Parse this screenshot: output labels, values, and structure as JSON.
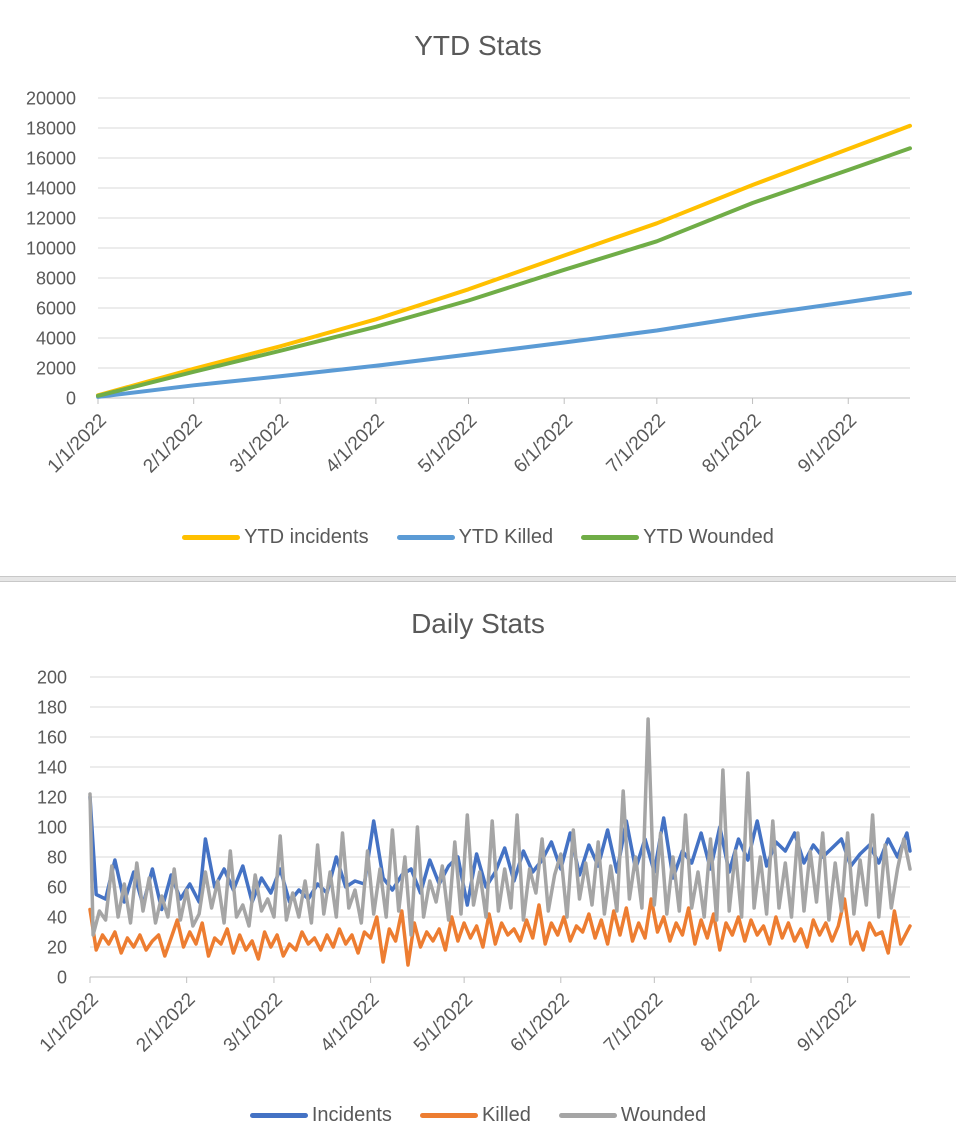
{
  "chart_data": [
    {
      "type": "line",
      "title": "YTD Stats",
      "xlabel": "",
      "ylabel": "",
      "x_domain": [
        "1/1/2022",
        "9/17/2022"
      ],
      "x_ticks": [
        "1/1/2022",
        "2/1/2022",
        "3/1/2022",
        "4/1/2022",
        "5/1/2022",
        "6/1/2022",
        "7/1/2022",
        "8/1/2022",
        "9/1/2022"
      ],
      "x_tick_days": [
        0,
        31,
        59,
        90,
        120,
        151,
        181,
        212,
        243
      ],
      "y_ticks": [
        "0",
        "2000",
        "4000",
        "6000",
        "8000",
        "10000",
        "12000",
        "14000",
        "16000",
        "18000",
        "20000"
      ],
      "ylim": [
        0,
        20000
      ],
      "grid": true,
      "legend_position": "bottom",
      "series": [
        {
          "name": "YTD incidents",
          "color": "#ffc000",
          "days": [
            0,
            31,
            59,
            90,
            120,
            151,
            181,
            212,
            243,
            263
          ],
          "values": [
            180,
            1950,
            3450,
            5250,
            7250,
            9500,
            11650,
            14200,
            16600,
            18150
          ]
        },
        {
          "name": "YTD Killed",
          "color": "#5b9bd5",
          "days": [
            0,
            31,
            59,
            90,
            120,
            151,
            181,
            212,
            243,
            263
          ],
          "values": [
            70,
            850,
            1450,
            2150,
            2900,
            3700,
            4500,
            5500,
            6400,
            7000
          ]
        },
        {
          "name": "YTD Wounded",
          "color": "#70ad47",
          "days": [
            0,
            31,
            59,
            90,
            120,
            151,
            181,
            212,
            243,
            263
          ],
          "values": [
            150,
            1750,
            3150,
            4750,
            6500,
            8550,
            10450,
            13000,
            15200,
            16650
          ]
        }
      ]
    },
    {
      "type": "line",
      "title": "Daily Stats",
      "xlabel": "",
      "ylabel": "",
      "x_domain": [
        "1/1/2022",
        "9/17/2022"
      ],
      "x_ticks": [
        "1/1/2022",
        "2/1/2022",
        "3/1/2022",
        "4/1/2022",
        "5/1/2022",
        "6/1/2022",
        "7/1/2022",
        "8/1/2022",
        "9/1/2022"
      ],
      "x_tick_days": [
        0,
        31,
        59,
        90,
        120,
        151,
        181,
        212,
        243
      ],
      "y_ticks": [
        "0",
        "20",
        "40",
        "60",
        "80",
        "100",
        "120",
        "140",
        "160",
        "180",
        "200"
      ],
      "ylim": [
        0,
        200
      ],
      "grid": true,
      "legend_position": "bottom",
      "series": [
        {
          "name": "Incidents",
          "color": "#4472c4",
          "days": [
            0,
            2,
            5,
            8,
            11,
            14,
            17,
            20,
            23,
            26,
            29,
            32,
            35,
            37,
            40,
            43,
            46,
            49,
            52,
            55,
            58,
            61,
            64,
            67,
            70,
            73,
            76,
            79,
            82,
            85,
            88,
            91,
            94,
            97,
            100,
            103,
            106,
            109,
            112,
            115,
            118,
            121,
            124,
            127,
            130,
            133,
            136,
            139,
            142,
            145,
            148,
            151,
            154,
            157,
            160,
            163,
            166,
            169,
            172,
            175,
            178,
            181,
            184,
            187,
            190,
            193,
            196,
            199,
            202,
            205,
            208,
            211,
            214,
            217,
            220,
            223,
            226,
            229,
            232,
            235,
            238,
            241,
            244,
            247,
            250,
            253,
            256,
            259,
            262,
            263
          ],
          "values": [
            120,
            55,
            52,
            78,
            50,
            70,
            48,
            72,
            45,
            68,
            52,
            62,
            50,
            92,
            60,
            72,
            58,
            74,
            50,
            66,
            56,
            72,
            50,
            58,
            52,
            62,
            56,
            80,
            60,
            64,
            62,
            104,
            66,
            58,
            68,
            72,
            56,
            78,
            62,
            74,
            80,
            48,
            82,
            60,
            70,
            86,
            64,
            84,
            70,
            78,
            90,
            72,
            96,
            68,
            88,
            74,
            98,
            70,
            104,
            72,
            92,
            70,
            106,
            66,
            84,
            76,
            96,
            72,
            100,
            70,
            92,
            78,
            104,
            74,
            90,
            84,
            96,
            76,
            88,
            80,
            86,
            92,
            74,
            82,
            88,
            76,
            92,
            80,
            96,
            84
          ]
        },
        {
          "name": "Killed",
          "color": "#ed7d31",
          "days": [
            0,
            2,
            4,
            6,
            8,
            10,
            12,
            14,
            16,
            18,
            20,
            22,
            24,
            26,
            28,
            30,
            32,
            34,
            36,
            38,
            40,
            42,
            44,
            46,
            48,
            50,
            52,
            54,
            56,
            58,
            60,
            62,
            64,
            66,
            68,
            70,
            72,
            74,
            76,
            78,
            80,
            82,
            84,
            86,
            88,
            90,
            92,
            94,
            96,
            98,
            100,
            102,
            104,
            106,
            108,
            110,
            112,
            114,
            116,
            118,
            120,
            122,
            124,
            126,
            128,
            130,
            132,
            134,
            136,
            138,
            140,
            142,
            144,
            146,
            148,
            150,
            152,
            154,
            156,
            158,
            160,
            162,
            164,
            166,
            168,
            170,
            172,
            174,
            176,
            178,
            180,
            182,
            184,
            186,
            188,
            190,
            192,
            194,
            196,
            198,
            200,
            202,
            204,
            206,
            208,
            210,
            212,
            214,
            216,
            218,
            220,
            222,
            224,
            226,
            228,
            230,
            232,
            234,
            236,
            238,
            240,
            242,
            244,
            246,
            248,
            250,
            252,
            254,
            256,
            258,
            260,
            263
          ],
          "values": [
            45,
            18,
            28,
            22,
            30,
            16,
            26,
            20,
            28,
            18,
            24,
            28,
            14,
            26,
            38,
            20,
            30,
            22,
            36,
            14,
            26,
            22,
            32,
            16,
            28,
            18,
            24,
            12,
            30,
            20,
            28,
            14,
            22,
            18,
            30,
            22,
            26,
            18,
            28,
            20,
            32,
            22,
            28,
            16,
            30,
            26,
            40,
            10,
            32,
            24,
            44,
            8,
            36,
            20,
            30,
            24,
            32,
            18,
            40,
            24,
            36,
            26,
            34,
            20,
            42,
            22,
            36,
            28,
            32,
            24,
            38,
            26,
            48,
            22,
            36,
            28,
            40,
            24,
            34,
            30,
            42,
            26,
            38,
            22,
            44,
            28,
            46,
            24,
            36,
            26,
            52,
            30,
            40,
            24,
            36,
            28,
            46,
            22,
            38,
            26,
            42,
            18,
            36,
            28,
            40,
            24,
            38,
            28,
            34,
            22,
            40,
            26,
            36,
            24,
            32,
            20,
            38,
            28,
            36,
            24,
            34,
            52,
            22,
            30,
            18,
            36,
            28,
            30,
            16,
            44,
            22,
            34
          ]
        },
        {
          "name": "Wounded",
          "color": "#a5a5a5",
          "days": [
            0,
            1,
            3,
            5,
            7,
            9,
            11,
            13,
            15,
            17,
            19,
            21,
            23,
            25,
            27,
            29,
            31,
            33,
            35,
            37,
            39,
            41,
            43,
            45,
            47,
            49,
            51,
            53,
            55,
            57,
            59,
            61,
            63,
            65,
            67,
            69,
            71,
            73,
            75,
            77,
            79,
            81,
            83,
            85,
            87,
            89,
            91,
            93,
            95,
            97,
            99,
            101,
            103,
            105,
            107,
            109,
            111,
            113,
            115,
            117,
            119,
            121,
            123,
            125,
            127,
            129,
            131,
            133,
            135,
            137,
            139,
            141,
            143,
            145,
            147,
            149,
            151,
            153,
            155,
            157,
            159,
            161,
            163,
            165,
            167,
            169,
            171,
            173,
            175,
            177,
            179,
            181,
            183,
            185,
            187,
            189,
            191,
            193,
            195,
            197,
            199,
            201,
            203,
            205,
            207,
            209,
            211,
            213,
            215,
            217,
            219,
            221,
            223,
            225,
            227,
            229,
            231,
            233,
            235,
            237,
            239,
            241,
            243,
            245,
            247,
            249,
            251,
            253,
            255,
            257,
            259,
            261,
            263
          ],
          "values": [
            122,
            28,
            44,
            38,
            74,
            40,
            62,
            36,
            76,
            44,
            66,
            36,
            54,
            40,
            72,
            38,
            58,
            34,
            42,
            70,
            46,
            64,
            36,
            84,
            40,
            48,
            34,
            68,
            44,
            52,
            40,
            94,
            38,
            56,
            40,
            64,
            36,
            88,
            42,
            70,
            40,
            96,
            46,
            58,
            36,
            84,
            42,
            72,
            40,
            98,
            44,
            80,
            28,
            100,
            40,
            64,
            50,
            74,
            38,
            90,
            42,
            108,
            48,
            70,
            40,
            104,
            44,
            72,
            46,
            108,
            38,
            72,
            56,
            92,
            44,
            68,
            82,
            40,
            98,
            52,
            76,
            48,
            90,
            42,
            74,
            44,
            124,
            52,
            80,
            46,
            172,
            48,
            96,
            42,
            80,
            44,
            108,
            46,
            70,
            40,
            92,
            38,
            138,
            44,
            84,
            40,
            136,
            46,
            80,
            42,
            104,
            46,
            76,
            40,
            96,
            44,
            84,
            50,
            96,
            38,
            76,
            44,
            96,
            42,
            78,
            48,
            108,
            40,
            88,
            46,
            72,
            92,
            72
          ]
        }
      ]
    }
  ]
}
